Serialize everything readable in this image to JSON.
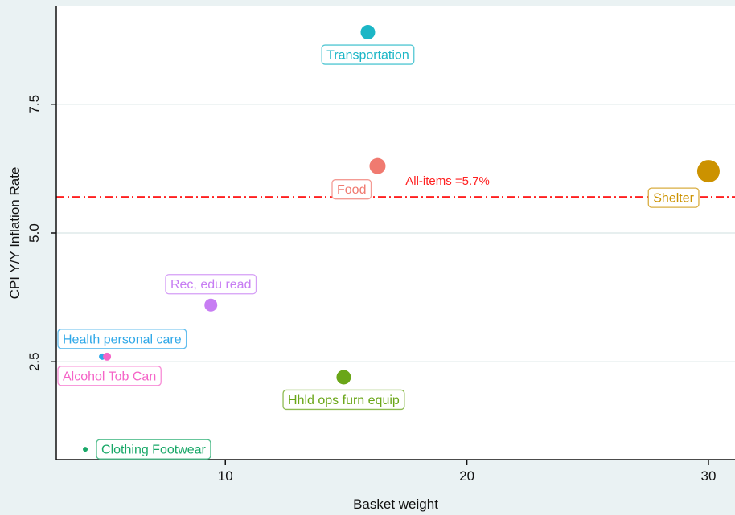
{
  "chart_data": {
    "type": "scatter",
    "title": "",
    "xlabel": "Basket weight",
    "ylabel": "CPI Y/Y Inflation Rate",
    "xlim": [
      3,
      31.1
    ],
    "ylim": [
      0.6,
      9.4
    ],
    "xticks": [
      10,
      20,
      30
    ],
    "yticks": [
      2.5,
      5.0,
      7.5
    ],
    "ytick_labels": [
      "2.5",
      "5.0",
      "7.5"
    ],
    "grid": "horizontal",
    "reference_line": {
      "y": 5.7,
      "label": "All-items =5.7%",
      "color": "#ff2020"
    },
    "points": [
      {
        "label": "Transportation",
        "x": 15.9,
        "y": 8.9,
        "size": 9,
        "color": "#1cb6c6",
        "label_pos": "below"
      },
      {
        "label": "Food",
        "x": 16.3,
        "y": 6.3,
        "size": 10,
        "color": "#f07a70",
        "label_pos": "below-left"
      },
      {
        "label": "Shelter",
        "x": 30.0,
        "y": 6.2,
        "size": 14,
        "color": "#cc9200",
        "label_pos": "below-left"
      },
      {
        "label": "Rec, edu read",
        "x": 9.4,
        "y": 3.6,
        "size": 8,
        "color": "#c77df3",
        "label_pos": "above"
      },
      {
        "label": "Health personal care",
        "x": 4.9,
        "y": 2.6,
        "size": 4,
        "color": "#2fa8e8",
        "label_pos": "above"
      },
      {
        "label": "Alcohol Tob Can",
        "x": 5.1,
        "y": 2.6,
        "size": 5,
        "color": "#f565c8",
        "label_pos": "below"
      },
      {
        "label": "Hhld ops furn equip",
        "x": 14.9,
        "y": 2.2,
        "size": 9,
        "color": "#6aa618",
        "label_pos": "below"
      },
      {
        "label": "Clothing Footwear",
        "x": 4.2,
        "y": 0.8,
        "size": 3,
        "color": "#19a868",
        "label_pos": "right"
      }
    ]
  }
}
